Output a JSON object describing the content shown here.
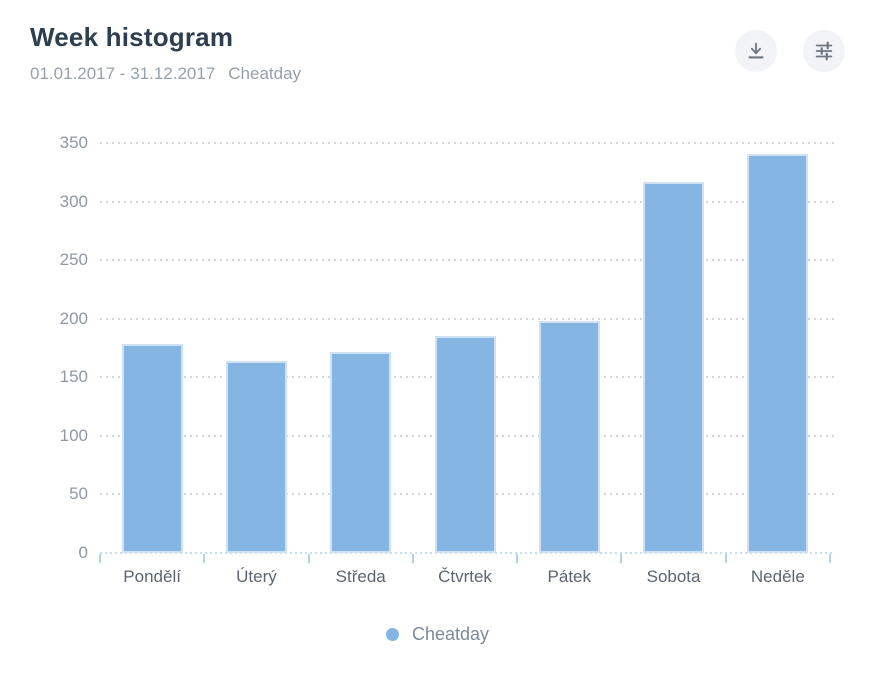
{
  "header": {
    "title": "Week histogram",
    "date_range": "01.01.2017 - 31.12.2017",
    "subtitle_tag": "Cheatday"
  },
  "toolbar": {
    "buttons": [
      {
        "name": "download-button",
        "icon": "download-icon"
      },
      {
        "name": "settings-button",
        "icon": "sliders-icon"
      }
    ]
  },
  "chart_data": {
    "type": "bar",
    "title": "Week histogram",
    "categories": [
      "Pondělí",
      "Úterý",
      "Středa",
      "Čtvrtek",
      "Pátek",
      "Sobota",
      "Neděle"
    ],
    "series": [
      {
        "name": "Cheatday",
        "values": [
          178,
          164,
          172,
          185,
          198,
          317,
          341
        ]
      }
    ],
    "xlabel": "",
    "ylabel": "",
    "ylim": [
      0,
      350
    ],
    "ytick_step": 50,
    "grid": "horizontal-dotted",
    "legend_position": "bottom"
  },
  "legend": {
    "label": "Cheatday"
  },
  "colors": {
    "bar": "#85b5e3",
    "bar_border": "#cfe2f4",
    "title": "#2d3e4e",
    "subtitle": "#97a1ad",
    "axis_label_y": "#8f98a6",
    "axis_label_x": "#5c6570",
    "gridline": "#d3d7dc",
    "baseline": "#c9ddf1",
    "tick": "#b5d0ec",
    "button_bg": "#f1f3f6",
    "button_icon": "#6e7781",
    "legend_text": "#7e8998",
    "card_bg": "#ffffff"
  }
}
